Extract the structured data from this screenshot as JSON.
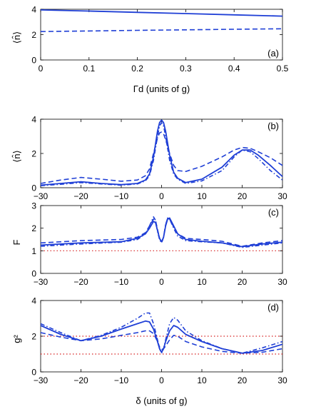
{
  "colors": {
    "series": "#1f3fd6",
    "reference": "#d62020",
    "axis": "#000000"
  },
  "chart_data": [
    {
      "type": "line",
      "panel_label": "(a)",
      "xlabel": "Γd (units of g)",
      "ylabel": "⟨n̂⟩",
      "xlim": [
        0,
        0.5
      ],
      "ylim": [
        0,
        4
      ],
      "xticks": [
        "0",
        "0.1",
        "0.2",
        "0.3",
        "0.4",
        "0.5"
      ],
      "yticks": [
        "0",
        "2",
        "4"
      ],
      "series": [
        {
          "style": "solid",
          "x": [
            0,
            0.1,
            0.2,
            0.3,
            0.4,
            0.5
          ],
          "y": [
            3.95,
            3.86,
            3.76,
            3.66,
            3.56,
            3.46
          ]
        },
        {
          "style": "dashed",
          "x": [
            0,
            0.1,
            0.2,
            0.3,
            0.4,
            0.5
          ],
          "y": [
            2.24,
            2.29,
            2.34,
            2.38,
            2.42,
            2.46
          ]
        }
      ]
    },
    {
      "type": "line",
      "panel_label": "(b)",
      "xlabel": "",
      "ylabel": "⟨n̂⟩",
      "xlim": [
        -30,
        30
      ],
      "ylim": [
        0,
        4
      ],
      "xticks": [
        "−30",
        "−20",
        "−10",
        "0",
        "10",
        "20",
        "30"
      ],
      "yticks": [
        "0",
        "2",
        "4"
      ],
      "series": [
        {
          "style": "solid",
          "x": [
            -30,
            -25,
            -20,
            -15,
            -10,
            -6,
            -4,
            -3,
            -2,
            -1,
            -0.5,
            0,
            0.5,
            1,
            2,
            3,
            4,
            6,
            10,
            15,
            18,
            20,
            22,
            24,
            27,
            30
          ],
          "y": [
            0.15,
            0.25,
            0.35,
            0.25,
            0.18,
            0.25,
            0.45,
            0.8,
            1.8,
            3.3,
            3.8,
            3.95,
            3.8,
            3.3,
            1.9,
            0.9,
            0.55,
            0.3,
            0.5,
            1.2,
            1.9,
            2.2,
            2.2,
            1.9,
            1.3,
            0.65
          ]
        },
        {
          "style": "dashed",
          "x": [
            -30,
            -25,
            -20,
            -15,
            -10,
            -6,
            -4,
            -3,
            -2,
            -1,
            -0.5,
            0,
            0.5,
            1,
            2,
            3,
            4,
            6,
            10,
            15,
            18,
            20,
            22,
            24,
            27,
            30
          ],
          "y": [
            0.25,
            0.45,
            0.6,
            0.5,
            0.38,
            0.45,
            0.7,
            1.1,
            2.0,
            2.9,
            3.2,
            3.25,
            3.15,
            2.8,
            2.0,
            1.3,
            1.0,
            0.95,
            1.25,
            1.8,
            2.2,
            2.35,
            2.3,
            2.1,
            1.75,
            1.3
          ]
        },
        {
          "style": "dashdot",
          "x": [
            -30,
            -25,
            -20,
            -15,
            -10,
            -6,
            -4,
            -3,
            -2,
            -1,
            -0.5,
            0,
            0.5,
            1,
            2,
            3,
            4,
            6,
            10,
            15,
            18,
            20,
            22,
            24,
            27,
            30
          ],
          "y": [
            0.12,
            0.2,
            0.3,
            0.22,
            0.15,
            0.22,
            0.4,
            0.7,
            1.6,
            3.0,
            3.6,
            3.8,
            3.6,
            3.0,
            1.6,
            0.8,
            0.5,
            0.25,
            0.4,
            1.0,
            1.8,
            2.2,
            2.1,
            1.7,
            1.0,
            0.45
          ]
        }
      ]
    },
    {
      "type": "line",
      "panel_label": "(c)",
      "xlabel": "",
      "ylabel": "F",
      "xlim": [
        -30,
        30
      ],
      "ylim": [
        0,
        3
      ],
      "xticks": [
        "−30",
        "−20",
        "−10",
        "0",
        "10",
        "20",
        "30"
      ],
      "yticks": [
        "0",
        "1",
        "2",
        "3"
      ],
      "reference_lines": [
        1
      ],
      "series": [
        {
          "style": "solid",
          "x": [
            -30,
            -20,
            -10,
            -6,
            -4,
            -3,
            -2,
            -1.5,
            -1,
            -0.5,
            0,
            0.5,
            1,
            1.5,
            2,
            3,
            4,
            6,
            10,
            15,
            20,
            25,
            30
          ],
          "y": [
            1.25,
            1.35,
            1.4,
            1.55,
            1.75,
            2.0,
            2.3,
            2.25,
            1.9,
            1.55,
            1.4,
            1.6,
            2.1,
            2.4,
            2.45,
            2.1,
            1.75,
            1.5,
            1.42,
            1.35,
            1.18,
            1.3,
            1.38
          ]
        },
        {
          "style": "dashed",
          "x": [
            -30,
            -20,
            -10,
            -6,
            -4,
            -3,
            -2,
            -1.5,
            -1,
            -0.5,
            0,
            0.5,
            1,
            1.5,
            2,
            3,
            4,
            6,
            10,
            15,
            20,
            25,
            30
          ],
          "y": [
            1.35,
            1.45,
            1.5,
            1.6,
            1.8,
            2.1,
            2.4,
            2.35,
            1.95,
            1.55,
            1.35,
            1.6,
            2.15,
            2.45,
            2.4,
            2.05,
            1.75,
            1.55,
            1.5,
            1.42,
            1.2,
            1.35,
            1.45
          ]
        },
        {
          "style": "dashdot",
          "x": [
            -30,
            -20,
            -10,
            -6,
            -4,
            -3,
            -2,
            -1.5,
            -1,
            -0.5,
            0,
            0.5,
            1,
            1.5,
            2,
            3,
            4,
            6,
            10,
            15,
            20,
            25,
            30
          ],
          "y": [
            1.2,
            1.3,
            1.38,
            1.5,
            1.75,
            2.1,
            2.5,
            2.35,
            1.85,
            1.5,
            1.35,
            1.6,
            2.15,
            2.45,
            2.4,
            2.0,
            1.65,
            1.45,
            1.4,
            1.35,
            1.15,
            1.25,
            1.35
          ]
        }
      ]
    },
    {
      "type": "line",
      "panel_label": "(d)",
      "xlabel": "δ (units of g)",
      "ylabel": "g²",
      "xlim": [
        -30,
        30
      ],
      "ylim": [
        0,
        4
      ],
      "xticks": [
        "−30",
        "−20",
        "−10",
        "0",
        "10",
        "20",
        "30"
      ],
      "yticks": [
        "0",
        "2",
        "4"
      ],
      "reference_lines": [
        2,
        1
      ],
      "series": [
        {
          "style": "solid",
          "x": [
            -30,
            -25,
            -20,
            -15,
            -10,
            -6,
            -4,
            -3,
            -2,
            -1,
            -0.5,
            0,
            0.5,
            1,
            2,
            3,
            4,
            6,
            10,
            15,
            20,
            25,
            30
          ],
          "y": [
            2.6,
            2.1,
            1.75,
            2.0,
            2.4,
            2.7,
            2.85,
            2.8,
            2.4,
            1.7,
            1.3,
            1.1,
            1.3,
            1.7,
            2.3,
            2.6,
            2.5,
            2.1,
            1.7,
            1.3,
            1.05,
            1.2,
            1.55
          ]
        },
        {
          "style": "dashed",
          "x": [
            -30,
            -25,
            -20,
            -15,
            -10,
            -6,
            -4,
            -3,
            -2,
            -1,
            -0.5,
            0,
            0.5,
            1,
            2,
            3,
            4,
            6,
            10,
            15,
            20,
            25,
            30
          ],
          "y": [
            2.2,
            1.95,
            1.75,
            1.85,
            2.05,
            2.2,
            2.3,
            2.3,
            2.15,
            1.7,
            1.4,
            1.25,
            1.3,
            1.45,
            1.8,
            2.05,
            2.0,
            1.7,
            1.4,
            1.15,
            1.05,
            1.1,
            1.3
          ]
        },
        {
          "style": "dashdot",
          "x": [
            -30,
            -25,
            -20,
            -15,
            -10,
            -6,
            -4,
            -3,
            -2,
            -1,
            -0.5,
            0,
            0.5,
            1,
            2,
            3,
            4,
            6,
            10,
            15,
            20,
            25,
            30
          ],
          "y": [
            2.7,
            2.2,
            1.75,
            2.05,
            2.5,
            3.0,
            3.3,
            3.3,
            2.7,
            1.8,
            1.3,
            1.05,
            1.3,
            1.8,
            2.7,
            3.05,
            2.9,
            2.3,
            1.75,
            1.3,
            1.05,
            1.35,
            1.7
          ]
        }
      ]
    }
  ]
}
